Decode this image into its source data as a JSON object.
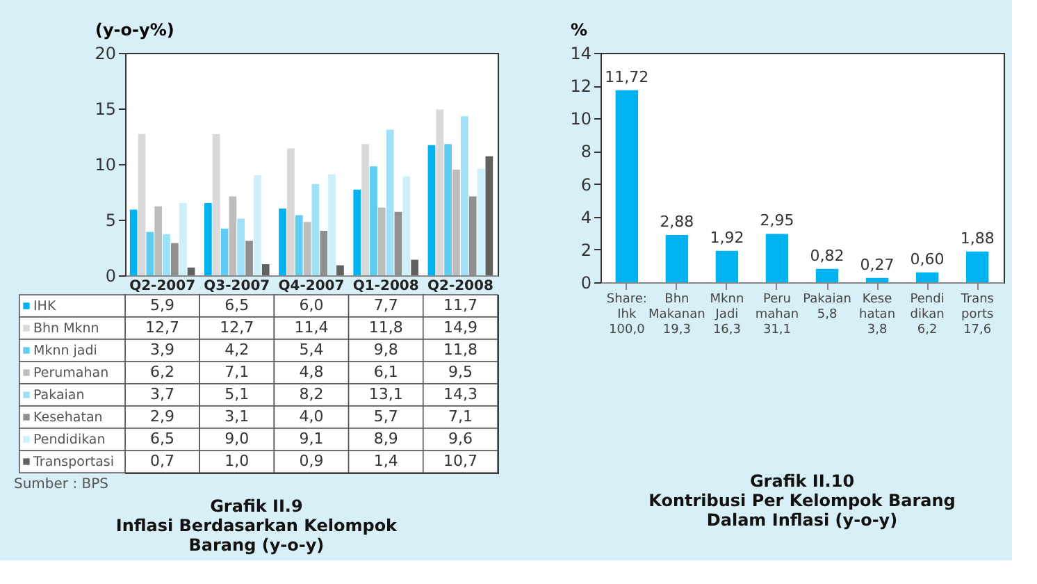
{
  "chart_data": [
    {
      "type": "bar",
      "title": "Grafik II.9\nInflasi Berdasarkan Kelompok\nBarang (y-o-y)",
      "ylabel": "(y-o-y%)",
      "categories": [
        "Q2-2007",
        "Q3-2007",
        "Q4-2007",
        "Q1-2008",
        "Q2-2008"
      ],
      "ylim": [
        0,
        20
      ],
      "yticks": [
        0,
        5,
        10,
        15,
        20
      ],
      "grid": false,
      "legend": "bottom",
      "data_labels": true,
      "annotations": [
        "Sumber : BPS"
      ],
      "series": [
        {
          "name": "IHK",
          "color": "#00b2ef",
          "values": [
            5.9,
            6.5,
            6.0,
            7.7,
            11.7
          ],
          "value_labels": [
            "5,9",
            "6,5",
            "6,0",
            "7,7",
            "11,7"
          ]
        },
        {
          "name": "Bhn Mknn",
          "color": "#d9d9d9",
          "values": [
            12.7,
            12.7,
            11.4,
            11.8,
            14.9
          ],
          "value_labels": [
            "12,7",
            "12,7",
            "11,4",
            "11,8",
            "14,9"
          ]
        },
        {
          "name": "Mknn jadi",
          "color": "#5fcdf3",
          "values": [
            3.9,
            4.2,
            5.4,
            9.8,
            11.8
          ],
          "value_labels": [
            "3,9",
            "4,2",
            "5,4",
            "9,8",
            "11,8"
          ]
        },
        {
          "name": "Perumahan",
          "color": "#bdbdbd",
          "values": [
            6.2,
            7.1,
            4.8,
            6.1,
            9.5
          ],
          "value_labels": [
            "6,2",
            "7,1",
            "4,8",
            "6,1",
            "9,5"
          ]
        },
        {
          "name": "Pakaian",
          "color": "#9fe2f8",
          "values": [
            3.7,
            5.1,
            8.2,
            13.1,
            14.3
          ],
          "value_labels": [
            "3,7",
            "5,1",
            "8,2",
            "13,1",
            "14,3"
          ]
        },
        {
          "name": "Kesehatan",
          "color": "#8f8f8f",
          "values": [
            2.9,
            3.1,
            4.0,
            5.7,
            7.1
          ],
          "value_labels": [
            "2,9",
            "3,1",
            "4,0",
            "5,7",
            "7,1"
          ]
        },
        {
          "name": "Pendidikan",
          "color": "#cdf0fb",
          "values": [
            6.5,
            9.0,
            9.1,
            8.9,
            9.6
          ],
          "value_labels": [
            "6,5",
            "9,0",
            "9,1",
            "8,9",
            "9,6"
          ]
        },
        {
          "name": "Transportasi",
          "color": "#616161",
          "values": [
            0.7,
            1.0,
            0.9,
            1.4,
            10.7
          ],
          "value_labels": [
            "0,7",
            "1,0",
            "0,9",
            "1,4",
            "10,7"
          ]
        }
      ]
    },
    {
      "type": "bar",
      "title": "Grafik II.10\nKontribusi Per Kelompok Barang\nDalam Inflasi (y-o-y)",
      "ylabel": "%",
      "categories": [
        "Share:\nIhk\n100,0",
        "Bhn\nMakanan\n19,3",
        "Mknn\nJadi\n16,3",
        "Peru\nmahan\n31,1",
        "Pakaian\n\n5,8",
        "Kese\nhatan\n3,8",
        "Pendi\ndikan\n6,2",
        "Trans\nports\n17,6"
      ],
      "ylim": [
        0,
        14
      ],
      "yticks": [
        0,
        2,
        4,
        6,
        8,
        10,
        12,
        14
      ],
      "grid": false,
      "series": [
        {
          "color": "#00b2ef",
          "values": [
            11.72,
            2.88,
            1.92,
            2.95,
            0.82,
            0.27,
            0.6,
            1.88
          ],
          "value_labels": [
            "11,72",
            "2,88",
            "1,92",
            "2,95",
            "0,82",
            "0,27",
            "0,60",
            "1,88"
          ]
        }
      ]
    }
  ]
}
